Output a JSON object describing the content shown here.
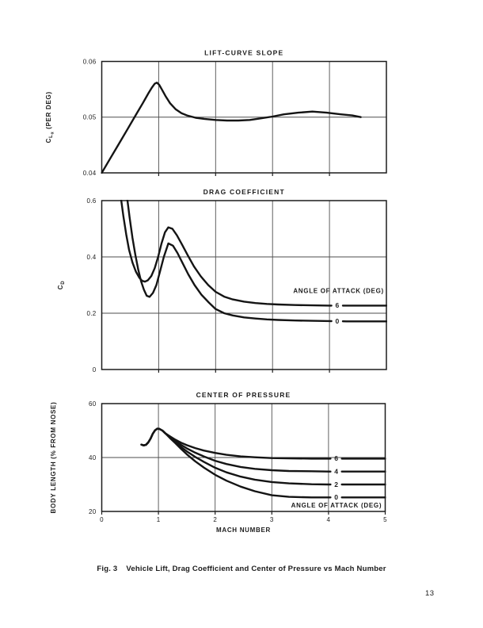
{
  "page": {
    "caption_prefix": "Fig. 3",
    "caption_text": "Vehicle Lift, Drag Coefficient and Center of Pressure vs Mach Number",
    "page_number": "13"
  },
  "chart_data": [
    {
      "type": "line",
      "title": "LIFT-CURVE SLOPE",
      "ylabel_main": "C",
      "ylabel_sub": "L",
      "ylabel_subsub": "α",
      "ylabel_rest": "(PER DEG)",
      "xlabel": "",
      "xlim": [
        0,
        5
      ],
      "ylim": [
        0.04,
        0.06
      ],
      "yticks": [
        0.04,
        0.05,
        0.06
      ],
      "ytick_labels": [
        "0.04",
        "0.05",
        "0.06"
      ],
      "xticks": [
        1,
        2,
        3,
        4
      ],
      "grid_x": [
        1,
        2,
        3,
        4
      ],
      "grid_y": [
        0.05
      ],
      "series": [
        {
          "name": "lift-curve-slope",
          "x": [
            0,
            0.15,
            0.3,
            0.45,
            0.6,
            0.72,
            0.82,
            0.88,
            0.93,
            0.97,
            1.01,
            1.06,
            1.12,
            1.2,
            1.3,
            1.4,
            1.5,
            1.65,
            1.8,
            2.0,
            2.2,
            2.4,
            2.6,
            2.8,
            3.0,
            3.2,
            3.45,
            3.7,
            3.95,
            4.2,
            4.4,
            4.55
          ],
          "y": [
            0.04,
            0.0426,
            0.0452,
            0.0478,
            0.0504,
            0.0525,
            0.0543,
            0.0553,
            0.056,
            0.0562,
            0.0558,
            0.0549,
            0.0538,
            0.0525,
            0.0514,
            0.0507,
            0.0503,
            0.0499,
            0.0497,
            0.0495,
            0.0494,
            0.0494,
            0.0495,
            0.0498,
            0.0501,
            0.0505,
            0.0508,
            0.051,
            0.0508,
            0.0505,
            0.0503,
            0.05
          ]
        }
      ]
    },
    {
      "type": "line",
      "title": "DRAG COEFFICIENT",
      "ylabel_main": "C",
      "ylabel_sub": "D",
      "xlabel": "",
      "xlim": [
        0,
        5
      ],
      "ylim": [
        0,
        0.6
      ],
      "yticks": [
        0,
        0.2,
        0.4,
        0.6
      ],
      "ytick_labels": [
        "0",
        "0.2",
        "0.4",
        "0.6"
      ],
      "xticks": [
        1,
        2,
        3,
        4
      ],
      "grid_x": [
        1,
        2,
        3,
        4
      ],
      "grid_y": [
        0.2,
        0.4
      ],
      "annotation": {
        "text": "ANGLE OF ATTACK (DEG)",
        "x": 4.16,
        "y": 0.272
      },
      "series": [
        {
          "name": "angle-of-attack-6",
          "label": "6",
          "label_x": 4.12,
          "x": [
            0.33,
            0.38,
            0.43,
            0.48,
            0.54,
            0.6,
            0.66,
            0.71,
            0.76,
            0.81,
            0.87,
            0.93,
            0.99,
            1.05,
            1.11,
            1.17,
            1.24,
            1.32,
            1.41,
            1.51,
            1.62,
            1.74,
            1.87,
            2.0,
            2.15,
            2.3,
            2.5,
            2.7,
            2.9,
            3.1,
            3.4,
            3.7,
            4.0,
            4.3,
            4.6,
            5.0
          ],
          "y": [
            0.62,
            0.545,
            0.48,
            0.425,
            0.38,
            0.348,
            0.326,
            0.315,
            0.312,
            0.317,
            0.332,
            0.36,
            0.4,
            0.448,
            0.487,
            0.505,
            0.5,
            0.477,
            0.444,
            0.406,
            0.366,
            0.331,
            0.3,
            0.276,
            0.259,
            0.249,
            0.241,
            0.236,
            0.233,
            0.231,
            0.229,
            0.228,
            0.227,
            0.227,
            0.227,
            0.227
          ]
        },
        {
          "name": "angle-of-attack-0",
          "label": "0",
          "label_x": 4.12,
          "x": [
            0.44,
            0.49,
            0.54,
            0.59,
            0.64,
            0.69,
            0.74,
            0.79,
            0.84,
            0.9,
            0.96,
            1.02,
            1.09,
            1.17,
            1.25,
            1.33,
            1.42,
            1.52,
            1.63,
            1.75,
            1.88,
            2.0,
            2.15,
            2.3,
            2.5,
            2.7,
            2.9,
            3.1,
            3.4,
            3.7,
            4.0,
            4.3,
            4.6,
            5.0
          ],
          "y": [
            0.62,
            0.54,
            0.468,
            0.408,
            0.356,
            0.314,
            0.284,
            0.262,
            0.258,
            0.272,
            0.3,
            0.345,
            0.4,
            0.448,
            0.44,
            0.414,
            0.378,
            0.338,
            0.3,
            0.266,
            0.238,
            0.215,
            0.2,
            0.192,
            0.185,
            0.181,
            0.178,
            0.176,
            0.174,
            0.173,
            0.172,
            0.171,
            0.171,
            0.171
          ]
        }
      ]
    },
    {
      "type": "line",
      "title": "CENTER OF PRESSURE",
      "ylabel": "BODY LENGTH (% FROM NOSE)",
      "xlabel": "MACH NUMBER",
      "xlim": [
        0,
        5
      ],
      "ylim": [
        20,
        60
      ],
      "yticks": [
        20,
        40,
        60
      ],
      "ytick_labels": [
        "20",
        "40",
        "60"
      ],
      "xticks": [
        0,
        1,
        2,
        3,
        4,
        5
      ],
      "xtick_labels": [
        "0",
        "1",
        "2",
        "3",
        "4",
        "5"
      ],
      "grid_x": [
        1,
        2,
        3,
        4
      ],
      "grid_y": [
        40
      ],
      "annotation": {
        "text": "ANGLE OF ATTACK (DEG)",
        "x": 4.14,
        "y": 21.4
      },
      "series": [
        {
          "name": "angle-of-attack-6",
          "label": "6",
          "label_x": 4.12,
          "x": [
            0.7,
            0.74,
            0.78,
            0.82,
            0.86,
            0.9,
            0.94,
            0.98,
            1.02,
            1.07,
            1.12,
            1.2,
            1.3,
            1.4,
            1.5,
            1.65,
            1.8,
            2.0,
            2.2,
            2.45,
            2.7,
            3.0,
            3.3,
            3.7,
            4.0,
            4.35,
            5.0
          ],
          "y": [
            44.8,
            44.5,
            44.7,
            45.6,
            47.0,
            48.8,
            50.1,
            50.7,
            50.6,
            50.0,
            49.0,
            47.9,
            46.6,
            45.5,
            44.6,
            43.5,
            42.6,
            41.7,
            41.0,
            40.4,
            40.1,
            39.8,
            39.7,
            39.6,
            39.6,
            39.6,
            39.6
          ]
        },
        {
          "name": "angle-of-attack-4",
          "label": "4",
          "label_x": 4.12,
          "x": [
            0.7,
            0.74,
            0.78,
            0.82,
            0.86,
            0.9,
            0.94,
            0.98,
            1.02,
            1.07,
            1.12,
            1.2,
            1.3,
            1.4,
            1.5,
            1.65,
            1.8,
            2.0,
            2.2,
            2.45,
            2.7,
            3.0,
            3.3,
            3.7,
            4.0,
            4.35,
            5.0
          ],
          "y": [
            44.8,
            44.5,
            44.7,
            45.6,
            47.0,
            48.8,
            50.1,
            50.7,
            50.6,
            50.0,
            49.0,
            47.7,
            46.1,
            44.7,
            43.4,
            41.8,
            40.4,
            38.8,
            37.6,
            36.5,
            35.8,
            35.3,
            35.0,
            34.9,
            34.8,
            34.8,
            34.8
          ]
        },
        {
          "name": "angle-of-attack-2",
          "label": "2",
          "label_x": 4.12,
          "x": [
            0.7,
            0.74,
            0.78,
            0.82,
            0.86,
            0.9,
            0.94,
            0.98,
            1.02,
            1.07,
            1.12,
            1.2,
            1.3,
            1.4,
            1.5,
            1.65,
            1.8,
            2.0,
            2.2,
            2.45,
            2.7,
            3.0,
            3.3,
            3.7,
            4.0,
            4.35,
            5.0
          ],
          "y": [
            44.8,
            44.5,
            44.7,
            45.6,
            47.0,
            48.8,
            50.1,
            50.7,
            50.6,
            50.0,
            49.0,
            47.5,
            45.7,
            43.9,
            42.3,
            40.2,
            38.4,
            36.2,
            34.5,
            32.9,
            31.8,
            30.9,
            30.4,
            30.1,
            30.0,
            30.0,
            30.0
          ]
        },
        {
          "name": "angle-of-attack-0",
          "label": "0",
          "label_x": 4.12,
          "x": [
            0.7,
            0.74,
            0.78,
            0.82,
            0.86,
            0.9,
            0.94,
            0.98,
            1.02,
            1.07,
            1.12,
            1.2,
            1.3,
            1.4,
            1.5,
            1.65,
            1.8,
            2.0,
            2.2,
            2.45,
            2.7,
            3.0,
            3.3,
            3.7,
            4.0,
            4.35,
            5.0
          ],
          "y": [
            44.8,
            44.5,
            44.7,
            45.6,
            47.0,
            48.8,
            50.1,
            50.7,
            50.6,
            50.0,
            49.0,
            47.3,
            45.3,
            43.2,
            41.2,
            38.6,
            36.3,
            33.6,
            31.4,
            29.2,
            27.5,
            26.0,
            25.4,
            25.2,
            25.2,
            25.2,
            25.2
          ]
        }
      ]
    }
  ]
}
